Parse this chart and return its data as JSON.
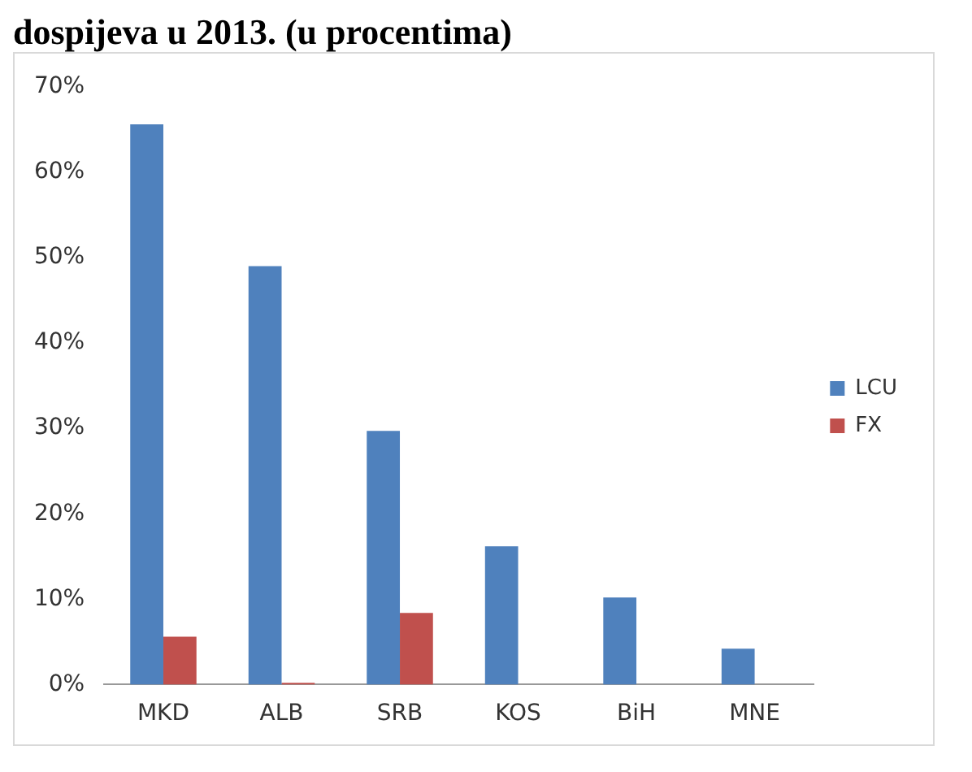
{
  "chart_data": {
    "type": "bar",
    "title": "dospijeva u 2013. (u procentima)",
    "categories": [
      "MKD",
      "ALB",
      "SRB",
      "KOS",
      "BiH",
      "MNE"
    ],
    "series": [
      {
        "name": "LCU",
        "color": "#4f81bd",
        "values": [
          65.6,
          49,
          29.7,
          16.2,
          10.2,
          4.2
        ]
      },
      {
        "name": "FX",
        "color": "#c0504d",
        "values": [
          5.6,
          0.2,
          8.4,
          0,
          0,
          0
        ]
      }
    ],
    "ylim": [
      0,
      70
    ],
    "yticks": [
      {
        "value": 0,
        "label": "0%"
      },
      {
        "value": 10,
        "label": "10%"
      },
      {
        "value": 20,
        "label": "20%"
      },
      {
        "value": 30,
        "label": "30%"
      },
      {
        "value": 40,
        "label": "40%"
      },
      {
        "value": 50,
        "label": "50%"
      },
      {
        "value": 60,
        "label": "60%"
      },
      {
        "value": 70,
        "label": "70%"
      }
    ],
    "grid": false,
    "legend": "right"
  }
}
